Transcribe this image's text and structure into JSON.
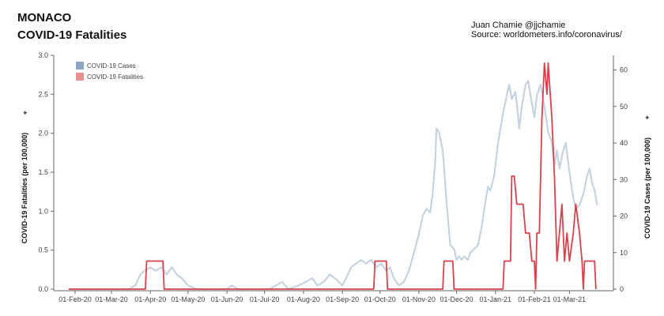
{
  "header": {
    "title_line1": "MONACO",
    "title_line2": "COVID-19 Fatalities",
    "credit_line1": "Juan Chamie @jjchamie",
    "credit_line2": "Source: worldometers.info/coronavirus/"
  },
  "colors": {
    "cases": "#c5d3e0",
    "fatalities": "#d9414b",
    "legend_cases": "#8fa7c2",
    "legend_fatalities": "#e79191",
    "axis": "#666666"
  },
  "chart_data": {
    "type": "line",
    "title": "MONACO COVID-19 Fatalities",
    "x_range": [
      "2020-01-15",
      "2021-04-05"
    ],
    "x_ticks": [
      "01-Feb-20",
      "01-Mar-20",
      "01-Apr-20",
      "01-May-20",
      "01-Jun-20",
      "01-Jul-20",
      "01-Aug-20",
      "01-Sep-20",
      "01-Oct-20",
      "01-Nov-20",
      "01-Dec-20",
      "01-Jan-21",
      "01-Feb-21",
      "01-Mar-21"
    ],
    "y_left": {
      "label": "COVID-19 Fatalities (per 100,000)",
      "range": [
        0,
        3.0
      ],
      "ticks": [
        "0.0",
        "0.5",
        "1.0",
        "1.5",
        "2.0",
        "2.5",
        "3.0"
      ]
    },
    "y_right": {
      "label": "COVID-19 Cases (per 100,000)",
      "range": [
        0,
        64
      ],
      "ticks": [
        "0",
        "10",
        "20",
        "30",
        "40",
        "50",
        "60"
      ]
    },
    "legend": [
      "COVID-19 Cases",
      "COVID-19 Fatalities"
    ],
    "legend_position": "top-left",
    "grid": false,
    "series": [
      {
        "name": "COVID-19 Cases",
        "axis": "right",
        "points": [
          [
            "2020-01-27",
            0
          ],
          [
            "2020-03-15",
            0
          ],
          [
            "2020-03-20",
            1
          ],
          [
            "2020-03-24",
            4
          ],
          [
            "2020-03-27",
            5
          ],
          [
            "2020-04-01",
            6
          ],
          [
            "2020-04-05",
            5
          ],
          [
            "2020-04-10",
            6
          ],
          [
            "2020-04-14",
            4
          ],
          [
            "2020-04-18",
            6
          ],
          [
            "2020-04-22",
            4
          ],
          [
            "2020-04-26",
            3
          ],
          [
            "2020-05-01",
            1
          ],
          [
            "2020-05-08",
            0
          ],
          [
            "2020-06-01",
            0
          ],
          [
            "2020-06-05",
            1
          ],
          [
            "2020-06-10",
            0
          ],
          [
            "2020-07-05",
            0
          ],
          [
            "2020-07-10",
            1
          ],
          [
            "2020-07-15",
            2
          ],
          [
            "2020-07-20",
            0
          ],
          [
            "2020-07-28",
            1
          ],
          [
            "2020-08-03",
            2
          ],
          [
            "2020-08-08",
            3
          ],
          [
            "2020-08-12",
            1
          ],
          [
            "2020-08-17",
            2
          ],
          [
            "2020-08-22",
            4
          ],
          [
            "2020-08-26",
            3
          ],
          [
            "2020-09-01",
            1
          ],
          [
            "2020-09-04",
            3
          ],
          [
            "2020-09-08",
            6
          ],
          [
            "2020-09-12",
            7
          ],
          [
            "2020-09-16",
            8
          ],
          [
            "2020-09-20",
            7
          ],
          [
            "2020-09-24",
            8
          ],
          [
            "2020-09-28",
            6
          ],
          [
            "2020-10-02",
            7
          ],
          [
            "2020-10-06",
            5
          ],
          [
            "2020-10-09",
            6
          ],
          [
            "2020-10-12",
            3
          ],
          [
            "2020-10-16",
            1
          ],
          [
            "2020-10-20",
            2
          ],
          [
            "2020-10-24",
            5
          ],
          [
            "2020-10-28",
            10
          ],
          [
            "2020-11-01",
            15
          ],
          [
            "2020-11-04",
            20
          ],
          [
            "2020-11-07",
            22
          ],
          [
            "2020-11-10",
            21
          ],
          [
            "2020-11-12",
            26
          ],
          [
            "2020-11-14",
            35
          ],
          [
            "2020-11-15",
            44
          ],
          [
            "2020-11-17",
            43
          ],
          [
            "2020-11-20",
            38
          ],
          [
            "2020-11-23",
            24
          ],
          [
            "2020-11-26",
            12
          ],
          [
            "2020-11-29",
            11
          ],
          [
            "2020-12-01",
            8
          ],
          [
            "2020-12-03",
            9
          ],
          [
            "2020-12-05",
            8
          ],
          [
            "2020-12-07",
            9
          ],
          [
            "2020-12-10",
            8
          ],
          [
            "2020-12-12",
            10
          ],
          [
            "2020-12-15",
            11
          ],
          [
            "2020-12-18",
            12
          ],
          [
            "2020-12-21",
            17
          ],
          [
            "2020-12-24",
            24
          ],
          [
            "2020-12-26",
            28
          ],
          [
            "2020-12-28",
            27
          ],
          [
            "2020-12-31",
            31
          ],
          [
            "2021-01-03",
            40
          ],
          [
            "2021-01-07",
            48
          ],
          [
            "2021-01-10",
            53
          ],
          [
            "2021-01-12",
            56
          ],
          [
            "2021-01-14",
            52
          ],
          [
            "2021-01-17",
            54
          ],
          [
            "2021-01-20",
            44
          ],
          [
            "2021-01-22",
            50
          ],
          [
            "2021-01-25",
            56
          ],
          [
            "2021-01-27",
            57
          ],
          [
            "2021-01-29",
            53
          ],
          [
            "2021-02-01",
            47
          ],
          [
            "2021-02-03",
            53
          ],
          [
            "2021-02-06",
            56
          ],
          [
            "2021-02-09",
            50
          ],
          [
            "2021-02-12",
            43
          ],
          [
            "2021-02-15",
            40
          ],
          [
            "2021-02-17",
            34
          ],
          [
            "2021-02-19",
            38
          ],
          [
            "2021-02-21",
            33
          ],
          [
            "2021-02-24",
            38
          ],
          [
            "2021-02-26",
            40
          ],
          [
            "2021-03-01",
            32
          ],
          [
            "2021-03-04",
            25
          ],
          [
            "2021-03-06",
            22
          ],
          [
            "2021-03-09",
            23
          ],
          [
            "2021-03-12",
            26
          ],
          [
            "2021-03-15",
            31
          ],
          [
            "2021-03-17",
            33
          ],
          [
            "2021-03-19",
            29
          ],
          [
            "2021-03-21",
            27
          ],
          [
            "2021-03-23",
            23
          ]
        ]
      },
      {
        "name": "COVID-19 Fatalities",
        "axis": "left",
        "points": [
          [
            "2020-01-27",
            0
          ],
          [
            "2020-03-28",
            0
          ],
          [
            "2020-03-29",
            0.36
          ],
          [
            "2020-04-11",
            0.36
          ],
          [
            "2020-04-12",
            0
          ],
          [
            "2020-09-26",
            0
          ],
          [
            "2020-09-27",
            0.36
          ],
          [
            "2020-10-06",
            0.36
          ],
          [
            "2020-10-07",
            0
          ],
          [
            "2020-11-20",
            0
          ],
          [
            "2020-11-21",
            0.36
          ],
          [
            "2020-11-28",
            0.36
          ],
          [
            "2020-11-29",
            0
          ],
          [
            "2021-01-07",
            0
          ],
          [
            "2021-01-08",
            0.36
          ],
          [
            "2021-01-13",
            0.36
          ],
          [
            "2021-01-14",
            1.45
          ],
          [
            "2021-01-16",
            1.45
          ],
          [
            "2021-01-18",
            1.09
          ],
          [
            "2021-01-23",
            1.09
          ],
          [
            "2021-01-25",
            0.72
          ],
          [
            "2021-01-28",
            0.72
          ],
          [
            "2021-01-30",
            0.36
          ],
          [
            "2021-02-01",
            0.36
          ],
          [
            "2021-02-02",
            0
          ],
          [
            "2021-02-03",
            0.72
          ],
          [
            "2021-02-05",
            0.72
          ],
          [
            "2021-02-07",
            2.18
          ],
          [
            "2021-02-09",
            2.9
          ],
          [
            "2021-02-11",
            2.5
          ],
          [
            "2021-02-12",
            2.9
          ],
          [
            "2021-02-15",
            2.18
          ],
          [
            "2021-02-17",
            1.45
          ],
          [
            "2021-02-19",
            0.36
          ],
          [
            "2021-02-21",
            0.72
          ],
          [
            "2021-02-23",
            1.09
          ],
          [
            "2021-02-25",
            0.36
          ],
          [
            "2021-02-27",
            0.72
          ],
          [
            "2021-03-01",
            0.36
          ],
          [
            "2021-03-04",
            0.72
          ],
          [
            "2021-03-06",
            1.09
          ],
          [
            "2021-03-09",
            0.72
          ],
          [
            "2021-03-11",
            0.36
          ],
          [
            "2021-03-12",
            0
          ],
          [
            "2021-03-13",
            0.36
          ],
          [
            "2021-03-21",
            0.36
          ],
          [
            "2021-03-22",
            0
          ]
        ]
      }
    ]
  }
}
